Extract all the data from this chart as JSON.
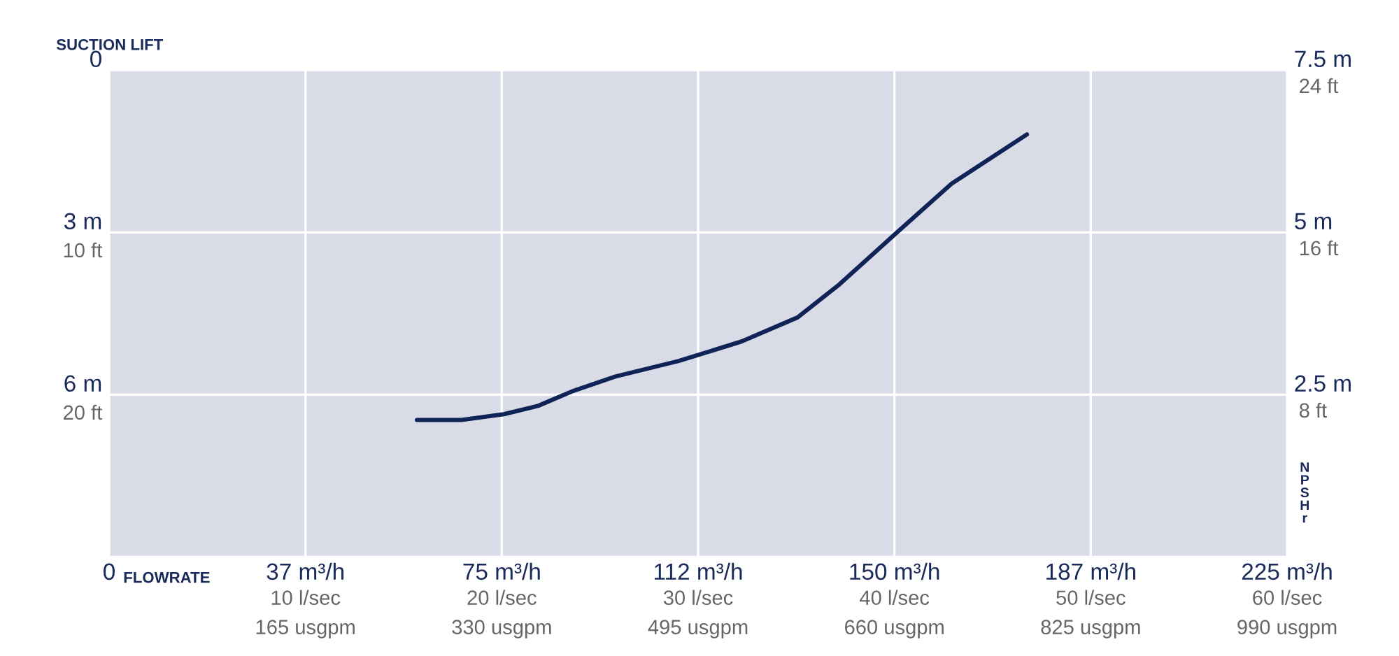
{
  "chart_data": {
    "type": "line",
    "xlabel": "FLOWRATE",
    "ylabel": "SUCTION LIFT",
    "y2label": "NPSHr",
    "xlim": [
      0,
      225
    ],
    "xticks": [
      0,
      {
        "value": 37.5,
        "label": "37 m³/h"
      },
      {
        "value": 75,
        "label": "75 m³/h"
      },
      {
        "value": 112.5,
        "label": "112 m³/h"
      },
      {
        "value": 150,
        "label": "150 m³/h"
      },
      {
        "value": 187.5,
        "label": "187 m³/h"
      },
      {
        "value": 225,
        "label": "225 m³/h"
      }
    ],
    "x2lim": [
      0,
      60
    ],
    "x2ticks": [
      {
        "value": 10,
        "label": "10 l/sec"
      },
      {
        "value": 20,
        "label": "20 l/sec"
      },
      {
        "value": 30,
        "label": "30 l/sec"
      },
      {
        "value": 40,
        "label": "40 l/sec"
      },
      {
        "value": 50,
        "label": "50 l/sec"
      },
      {
        "value": 60,
        "label": "60 l/sec"
      }
    ],
    "annotations": [
      "165 usgpm",
      "330 usgpm",
      "495 usgpm",
      "660 usgpm",
      "825 usgpm",
      "990 usgpm",
      "8 ft",
      "16 ft",
      "24 ft"
    ],
    "ylim": [
      9,
      0
    ],
    "yticks": [
      0,
      {
        "value": 3,
        "label": "3 m"
      },
      {
        "value": 6,
        "label": "6 m"
      },
      {
        "value": 9,
        "label": null
      }
    ],
    "y3lim": [
      30,
      0
    ],
    "y3ticks": [
      {
        "value": 10,
        "label": "10 ft"
      },
      {
        "value": 20,
        "label": "20 ft"
      }
    ],
    "y2lim": [
      0,
      7.5
    ],
    "y2ticks": [
      {
        "value": 0,
        "label": null
      },
      {
        "value": 2.5,
        "label": "2.5 m"
      },
      {
        "value": 5,
        "label": "5 m"
      },
      {
        "value": 7.5,
        "label": "7.5 m"
      }
    ],
    "grid": true,
    "legend": false,
    "marker": "none",
    "line_style": "solid",
    "series": [
      {
        "axis": "y2",
        "color": "#0f2356",
        "x": [
          58.8,
          67.3,
          75.4,
          82.0,
          88.7,
          96.7,
          108.8,
          120.8,
          131.5,
          139.5,
          150.2,
          160.9,
          175.3
        ],
        "values": [
          2.11,
          2.11,
          2.2,
          2.33,
          2.56,
          2.78,
          3.02,
          3.32,
          3.69,
          4.2,
          4.98,
          5.75,
          6.51
        ]
      }
    ]
  }
}
